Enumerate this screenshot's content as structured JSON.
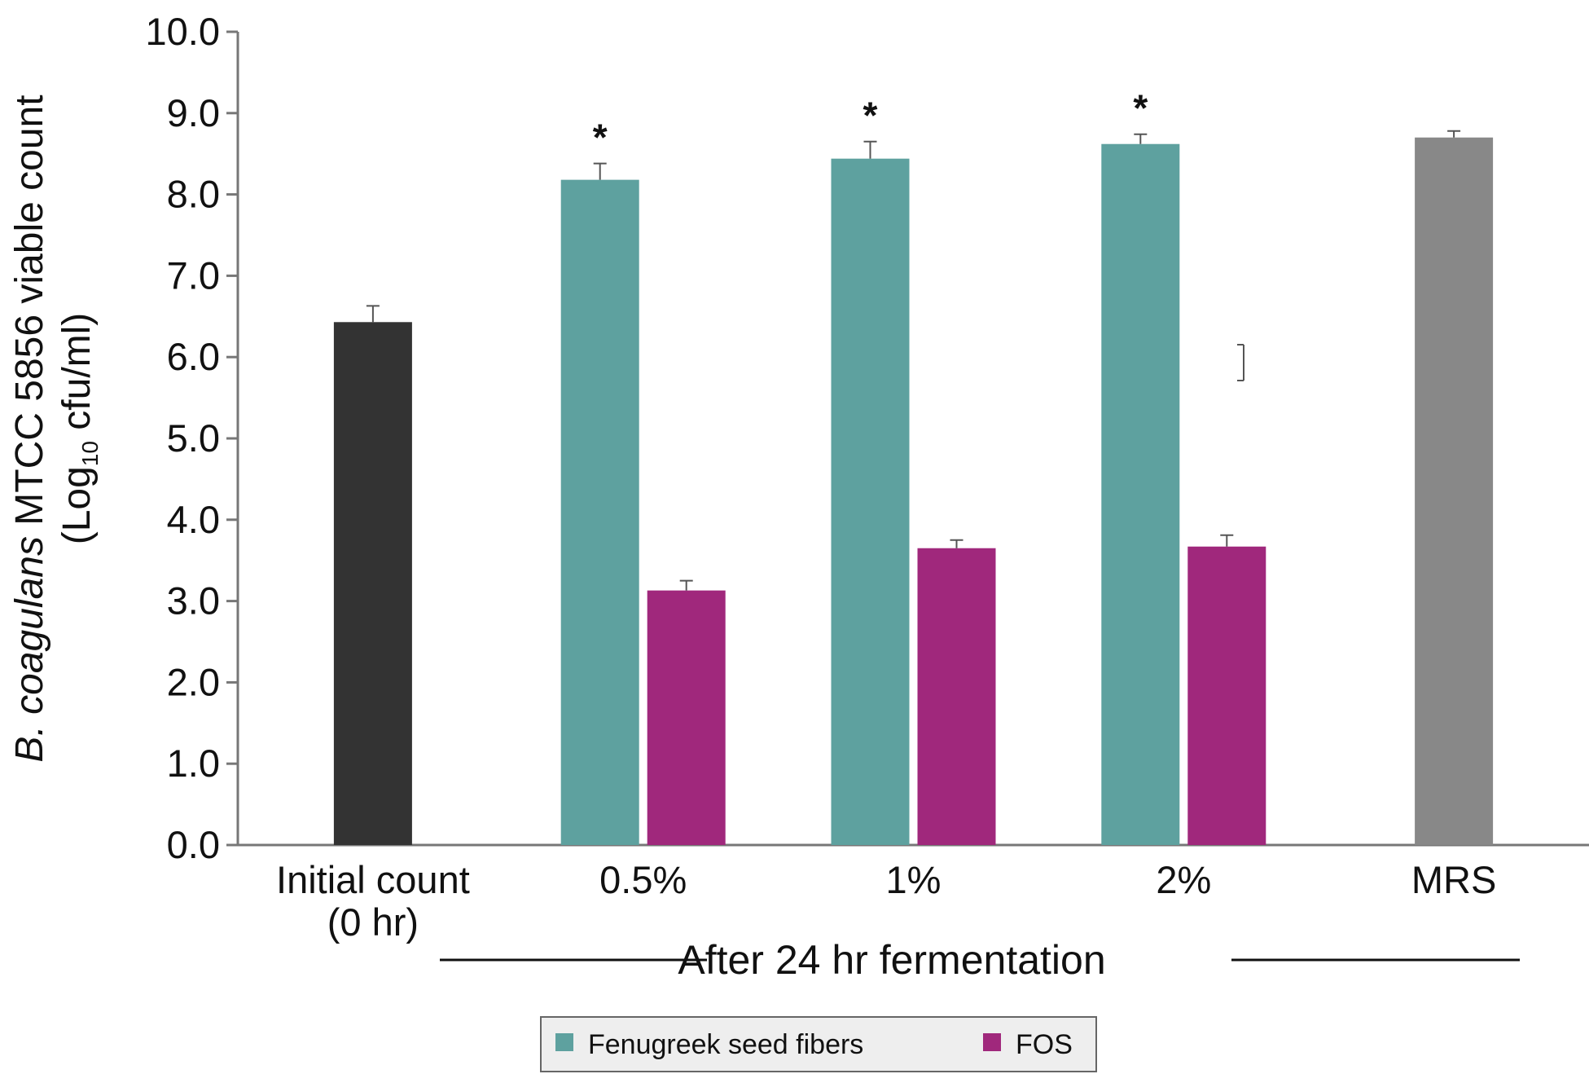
{
  "chart_data": {
    "type": "bar",
    "ylabel_line1_italic": "B. coagulans",
    "ylabel_line1_rest": " MTCC 5856 viable count",
    "ylabel_line2_pre": "(Log",
    "ylabel_line2_sub": "10",
    "ylabel_line2_post": " cfu/ml)",
    "ylim": [
      0,
      10
    ],
    "yticks": [
      "0.0",
      "1.0",
      "2.0",
      "3.0",
      "4.0",
      "5.0",
      "6.0",
      "7.0",
      "8.0",
      "9.0",
      "10.0"
    ],
    "categories": [
      {
        "line1": "Initial count",
        "line2": "(0 hr)"
      },
      {
        "line1": "0.5%",
        "line2": ""
      },
      {
        "line1": "1%",
        "line2": ""
      },
      {
        "line1": "2%",
        "line2": ""
      },
      {
        "line1": "MRS",
        "line2": ""
      }
    ],
    "group_caption": "After 24 hr fermentation",
    "bars": [
      {
        "category": 0,
        "slot": "single",
        "value": 6.43,
        "error": 0.2,
        "color": "#333333",
        "star": ""
      },
      {
        "category": 1,
        "slot": "left",
        "series": "Fenugreek seed fibers",
        "value": 8.18,
        "error": 0.2,
        "color": "#5ea19f",
        "star": "*"
      },
      {
        "category": 1,
        "slot": "right",
        "series": "FOS",
        "value": 3.13,
        "error": 0.12,
        "color": "#a0287c",
        "star": ""
      },
      {
        "category": 2,
        "slot": "left",
        "series": "Fenugreek seed fibers",
        "value": 8.44,
        "error": 0.21,
        "color": "#5ea19f",
        "star": "*"
      },
      {
        "category": 2,
        "slot": "right",
        "series": "FOS",
        "value": 3.65,
        "error": 0.1,
        "color": "#a0287c",
        "star": ""
      },
      {
        "category": 3,
        "slot": "left",
        "series": "Fenugreek seed fibers",
        "value": 8.62,
        "error": 0.12,
        "color": "#5ea19f",
        "star": "*"
      },
      {
        "category": 3,
        "slot": "right",
        "series": "FOS",
        "value": 3.67,
        "error": 0.14,
        "color": "#a0287c",
        "star": ""
      },
      {
        "category": 4,
        "slot": "single",
        "value": 8.7,
        "error": 0.08,
        "color": "#888888",
        "star": ""
      }
    ],
    "legend": [
      {
        "label": "Fenugreek seed fibers",
        "color": "#5ea19f"
      },
      {
        "label": "FOS",
        "color": "#a0287c"
      }
    ],
    "legend_position": "bottom-center",
    "grid": false
  }
}
